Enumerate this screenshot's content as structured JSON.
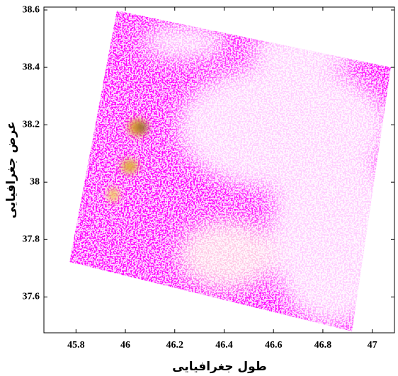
{
  "chart_data": {
    "type": "map",
    "xlabel": "طول جغرافیایی",
    "ylabel": "عرض جغرافیایی",
    "xlim": [
      45.67,
      47.09
    ],
    "ylim": [
      37.475,
      38.61
    ],
    "xticks": [
      45.8,
      46,
      46.2,
      46.4,
      46.6,
      46.8,
      47
    ],
    "yticks": [
      37.6,
      37.8,
      38,
      38.2,
      38.4,
      38.6
    ]
  }
}
